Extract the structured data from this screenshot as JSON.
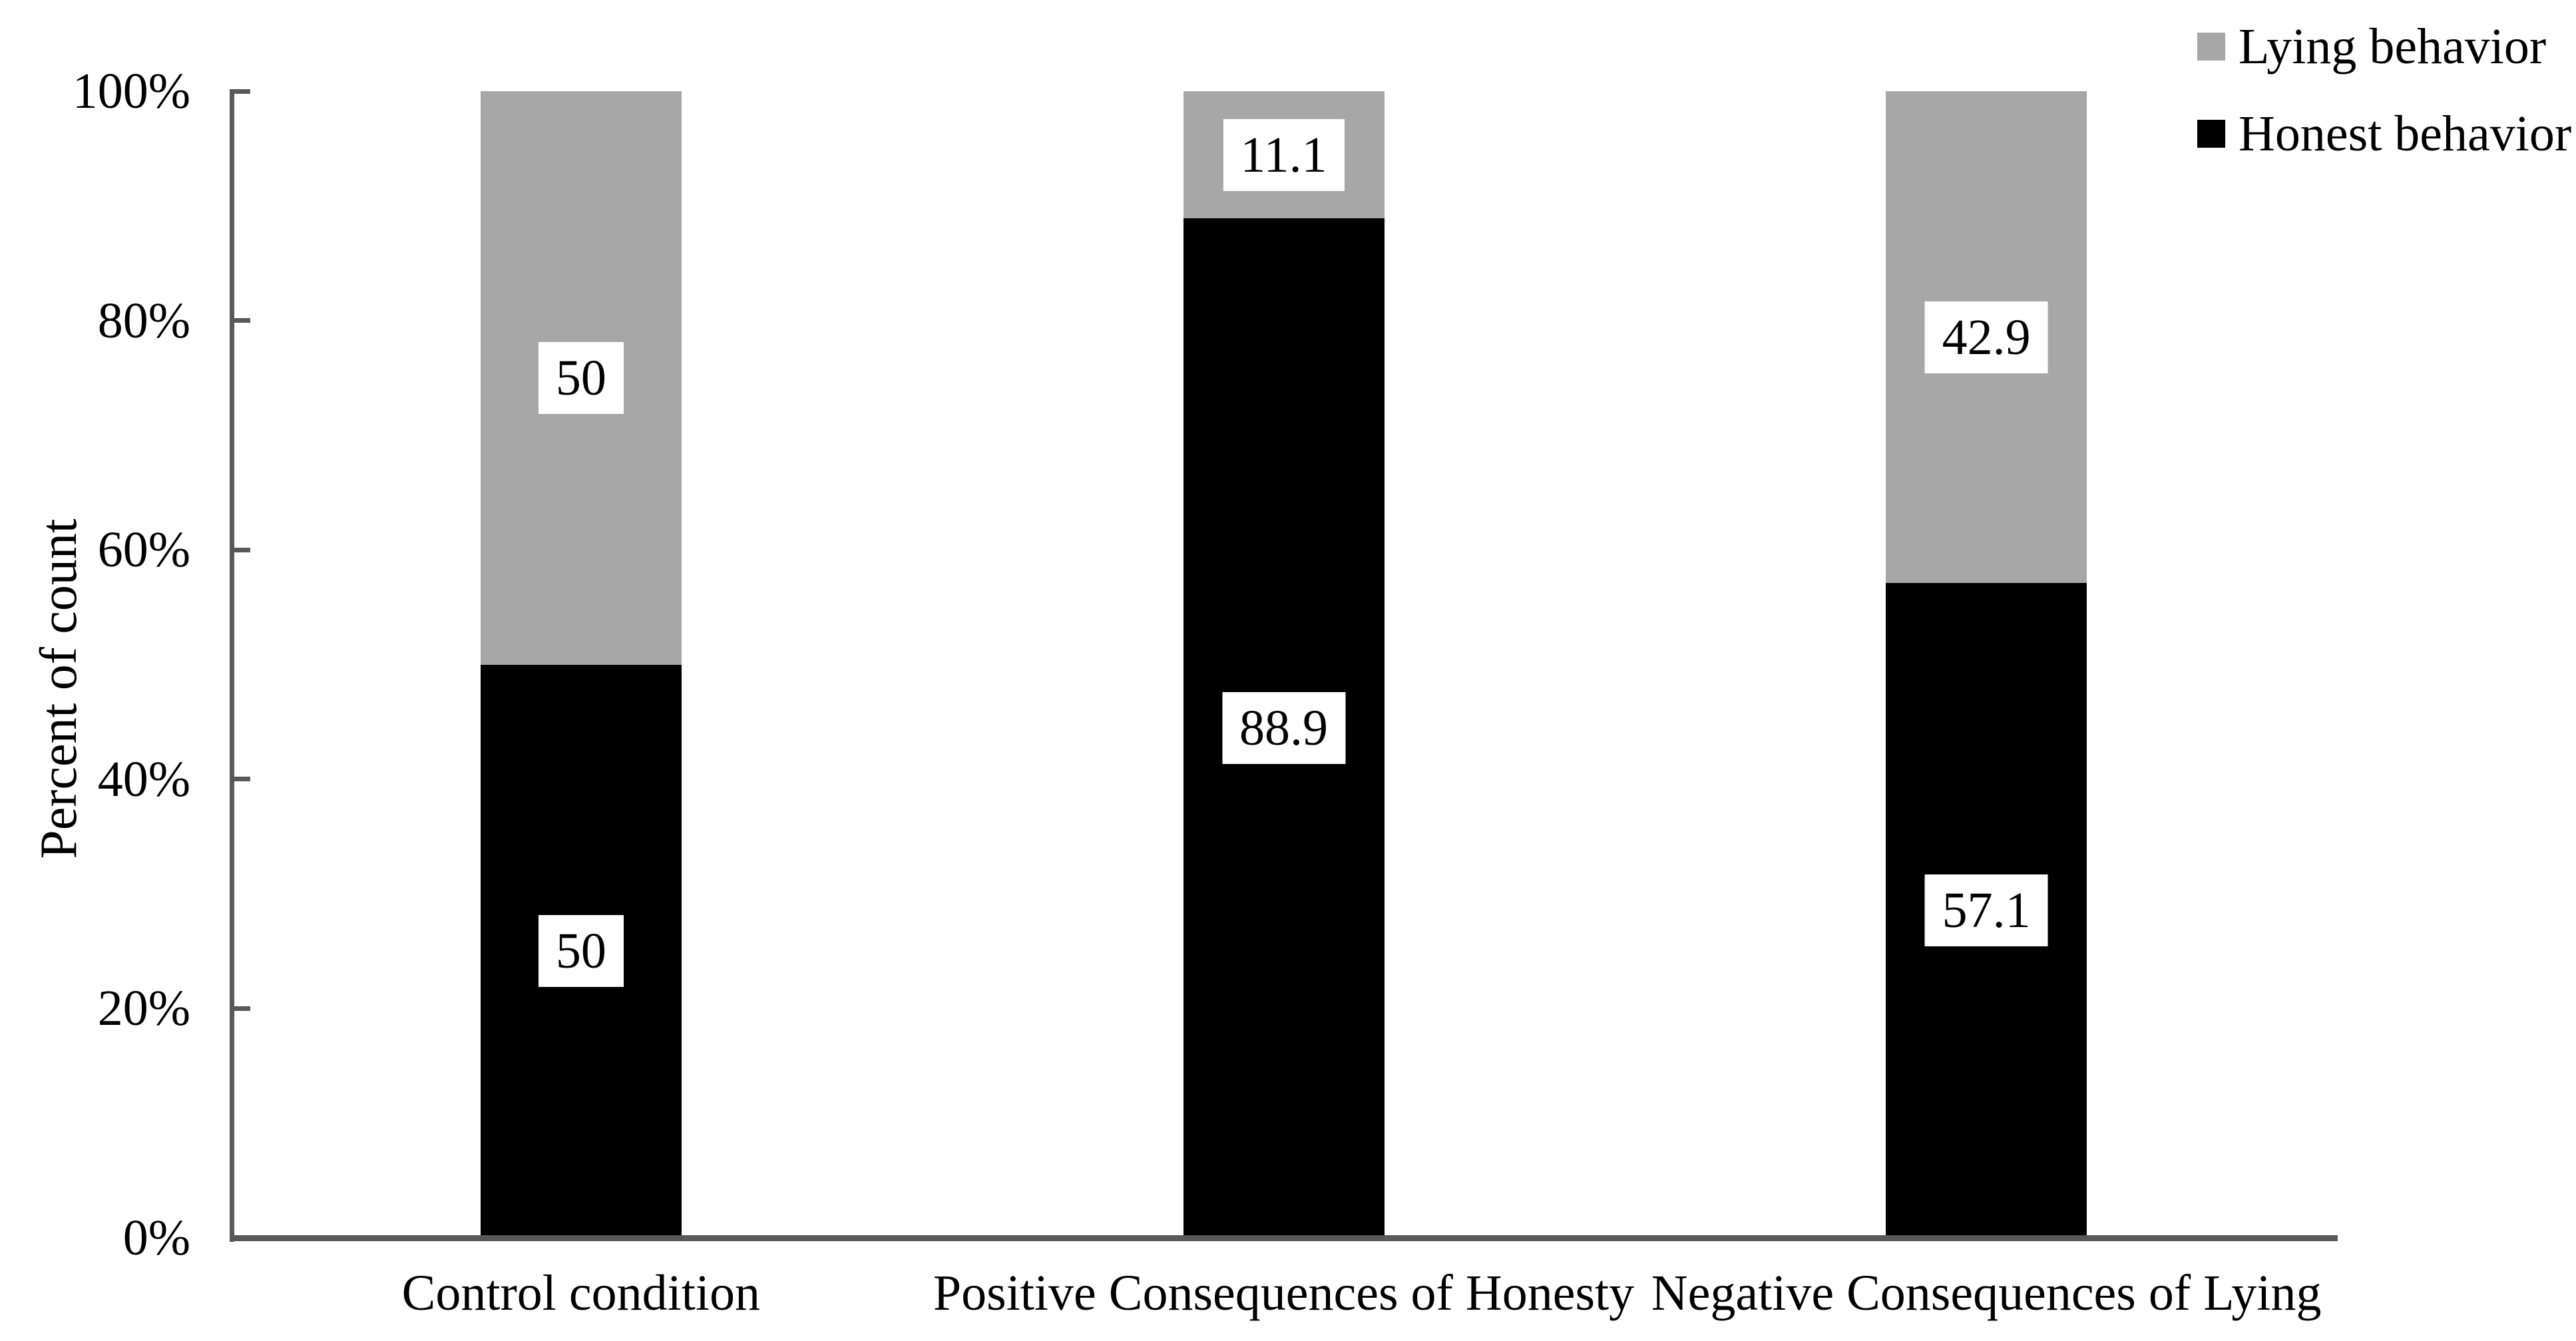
{
  "chart_data": {
    "type": "bar",
    "stacked": true,
    "title": "",
    "xlabel": "",
    "ylabel": "Percent of count",
    "categories": [
      "Control condition",
      "Positive Consequences of Honesty",
      "Negative Consequences of Lying"
    ],
    "series": [
      {
        "name": "Honest behavior",
        "color": "#000000",
        "values": [
          50,
          88.9,
          57.1
        ],
        "labels": [
          "50",
          "88.9",
          "57.1"
        ]
      },
      {
        "name": "Lying behavior",
        "color": "#a7a7a7",
        "values": [
          50,
          11.1,
          42.9
        ],
        "labels": [
          "50",
          "11.1",
          "42.9"
        ]
      }
    ],
    "y_ticks": [
      "0%",
      "20%",
      "40%",
      "60%",
      "80%",
      "100%"
    ],
    "ylim": [
      0,
      100
    ],
    "grid": false,
    "axis_color": "#595959",
    "data_label_box_color": "#ffffff",
    "legend": {
      "position": "top-right",
      "items": [
        {
          "label": "Lying behavior",
          "swatch_color": "#a7a7a7"
        },
        {
          "label": "Honest behavior",
          "swatch_color": "#000000"
        }
      ]
    }
  }
}
